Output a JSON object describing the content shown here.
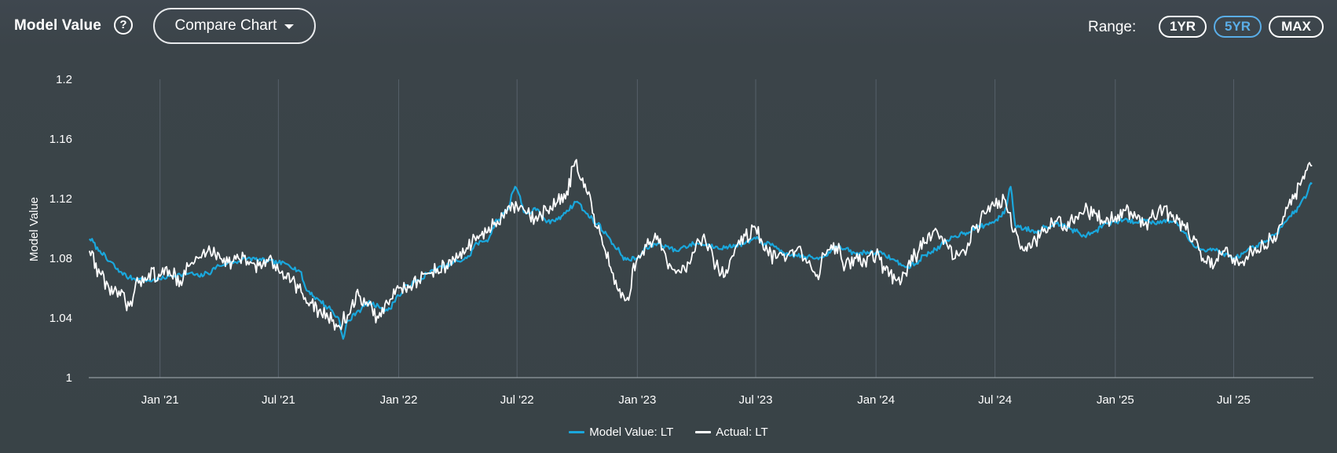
{
  "header": {
    "title": "Model Value",
    "help_glyph": "?",
    "compare_label": "Compare Chart",
    "range_label": "Range:",
    "ranges": [
      {
        "label": "1YR",
        "active": false
      },
      {
        "label": "5YR",
        "active": true
      },
      {
        "label": "MAX",
        "active": false
      }
    ]
  },
  "colors": {
    "model": "#1aa7dc",
    "actual": "#ffffff",
    "grid": "#56606a",
    "axis": "#a8b0b6"
  },
  "chart_data": {
    "type": "line",
    "ylabel": "Model Value",
    "xlabel": "",
    "ylim": [
      1,
      1.2
    ],
    "yticks": [
      "1",
      "1.04",
      "1.08",
      "1.12",
      "1.16",
      "1.2"
    ],
    "x_range": [
      "2020-09-14",
      "2025-10-31"
    ],
    "x_ticks": [
      {
        "date": "2021-01-01",
        "label": "Jan '21"
      },
      {
        "date": "2021-07-01",
        "label": "Jul '21"
      },
      {
        "date": "2022-01-01",
        "label": "Jan '22"
      },
      {
        "date": "2022-07-01",
        "label": "Jul '22"
      },
      {
        "date": "2023-01-01",
        "label": "Jan '23"
      },
      {
        "date": "2023-07-01",
        "label": "Jul '23"
      },
      {
        "date": "2024-01-01",
        "label": "Jan '24"
      },
      {
        "date": "2024-07-01",
        "label": "Jul '24"
      },
      {
        "date": "2025-01-01",
        "label": "Jan '25"
      },
      {
        "date": "2025-07-01",
        "label": "Jul '25"
      }
    ],
    "grid": "vertical",
    "legend_position": "bottom-center",
    "series": [
      {
        "name": "Model Value: LT",
        "x": [
          "2020-09-15",
          "2020-10-01",
          "2020-10-15",
          "2020-11-01",
          "2020-11-15",
          "2020-12-01",
          "2020-12-15",
          "2021-01-01",
          "2021-01-15",
          "2021-02-01",
          "2021-02-15",
          "2021-03-01",
          "2021-03-15",
          "2021-04-01",
          "2021-04-15",
          "2021-05-01",
          "2021-05-15",
          "2021-06-01",
          "2021-06-15",
          "2021-07-01",
          "2021-07-15",
          "2021-08-01",
          "2021-08-15",
          "2021-09-01",
          "2021-09-15",
          "2021-10-01",
          "2021-10-08",
          "2021-10-15",
          "2021-11-01",
          "2021-11-15",
          "2021-12-01",
          "2021-12-15",
          "2022-01-01",
          "2022-01-15",
          "2022-02-01",
          "2022-02-15",
          "2022-03-01",
          "2022-03-15",
          "2022-04-01",
          "2022-04-15",
          "2022-05-01",
          "2022-05-15",
          "2022-06-01",
          "2022-06-15",
          "2022-06-28",
          "2022-07-15",
          "2022-08-01",
          "2022-08-15",
          "2022-09-01",
          "2022-09-15",
          "2022-10-01",
          "2022-10-15",
          "2022-11-01",
          "2022-11-15",
          "2022-12-01",
          "2022-12-15",
          "2023-01-01",
          "2023-01-15",
          "2023-02-01",
          "2023-02-15",
          "2023-03-01",
          "2023-03-15",
          "2023-04-01",
          "2023-04-15",
          "2023-05-01",
          "2023-05-15",
          "2023-06-01",
          "2023-06-15",
          "2023-07-01",
          "2023-07-15",
          "2023-08-01",
          "2023-08-15",
          "2023-09-01",
          "2023-09-15",
          "2023-10-01",
          "2023-10-15",
          "2023-11-01",
          "2023-11-15",
          "2023-12-01",
          "2023-12-15",
          "2024-01-01",
          "2024-01-15",
          "2024-02-01",
          "2024-02-15",
          "2024-03-01",
          "2024-03-15",
          "2024-04-01",
          "2024-04-15",
          "2024-05-01",
          "2024-05-15",
          "2024-06-01",
          "2024-06-15",
          "2024-07-01",
          "2024-07-15",
          "2024-07-25",
          "2024-08-01",
          "2024-08-15",
          "2024-09-01",
          "2024-09-15",
          "2024-10-01",
          "2024-10-15",
          "2024-11-01",
          "2024-11-15",
          "2024-12-01",
          "2024-12-15",
          "2025-01-01",
          "2025-01-15",
          "2025-02-01",
          "2025-02-15",
          "2025-03-01",
          "2025-03-15",
          "2025-04-01",
          "2025-04-15",
          "2025-05-01",
          "2025-05-15",
          "2025-06-01",
          "2025-06-15",
          "2025-07-01",
          "2025-07-15",
          "2025-08-01",
          "2025-08-15",
          "2025-09-01",
          "2025-09-15",
          "2025-10-01",
          "2025-10-15",
          "2025-10-29"
        ],
        "values": [
          1.093,
          1.085,
          1.078,
          1.071,
          1.067,
          1.066,
          1.065,
          1.066,
          1.068,
          1.069,
          1.07,
          1.068,
          1.07,
          1.075,
          1.077,
          1.078,
          1.08,
          1.079,
          1.078,
          1.077,
          1.076,
          1.072,
          1.058,
          1.052,
          1.047,
          1.04,
          1.026,
          1.038,
          1.045,
          1.05,
          1.048,
          1.045,
          1.055,
          1.062,
          1.065,
          1.07,
          1.073,
          1.075,
          1.078,
          1.08,
          1.09,
          1.092,
          1.105,
          1.112,
          1.128,
          1.11,
          1.113,
          1.104,
          1.106,
          1.112,
          1.118,
          1.11,
          1.103,
          1.096,
          1.086,
          1.079,
          1.08,
          1.087,
          1.09,
          1.088,
          1.085,
          1.088,
          1.09,
          1.089,
          1.088,
          1.087,
          1.089,
          1.09,
          1.093,
          1.09,
          1.088,
          1.082,
          1.082,
          1.081,
          1.08,
          1.082,
          1.088,
          1.086,
          1.083,
          1.084,
          1.084,
          1.082,
          1.078,
          1.074,
          1.076,
          1.082,
          1.086,
          1.09,
          1.095,
          1.097,
          1.1,
          1.102,
          1.105,
          1.11,
          1.128,
          1.102,
          1.1,
          1.098,
          1.101,
          1.103,
          1.103,
          1.098,
          1.095,
          1.098,
          1.103,
          1.104,
          1.106,
          1.104,
          1.106,
          1.104,
          1.105,
          1.105,
          1.098,
          1.088,
          1.086,
          1.086,
          1.083,
          1.08,
          1.083,
          1.087,
          1.09,
          1.095,
          1.103,
          1.11,
          1.12,
          1.13
        ]
      },
      {
        "name": "Actual: LT",
        "x": [
          "2020-09-15",
          "2020-10-01",
          "2020-10-15",
          "2020-11-01",
          "2020-11-15",
          "2020-12-01",
          "2020-12-15",
          "2021-01-01",
          "2021-01-15",
          "2021-02-01",
          "2021-02-15",
          "2021-03-01",
          "2021-03-15",
          "2021-04-01",
          "2021-04-15",
          "2021-05-01",
          "2021-05-15",
          "2021-06-01",
          "2021-06-15",
          "2021-07-01",
          "2021-07-15",
          "2021-08-01",
          "2021-08-15",
          "2021-09-01",
          "2021-09-15",
          "2021-10-01",
          "2021-10-15",
          "2021-11-01",
          "2021-11-15",
          "2021-12-01",
          "2021-12-15",
          "2022-01-01",
          "2022-01-15",
          "2022-02-01",
          "2022-02-15",
          "2022-03-01",
          "2022-03-15",
          "2022-04-01",
          "2022-04-15",
          "2022-05-01",
          "2022-05-15",
          "2022-06-01",
          "2022-06-15",
          "2022-07-01",
          "2022-07-15",
          "2022-08-01",
          "2022-08-15",
          "2022-09-01",
          "2022-09-15",
          "2022-09-28",
          "2022-10-15",
          "2022-11-01",
          "2022-11-15",
          "2022-12-01",
          "2022-12-15",
          "2023-01-01",
          "2023-01-15",
          "2023-02-01",
          "2023-02-15",
          "2023-03-01",
          "2023-03-15",
          "2023-04-01",
          "2023-04-15",
          "2023-05-01",
          "2023-05-15",
          "2023-06-01",
          "2023-06-15",
          "2023-07-01",
          "2023-07-15",
          "2023-08-01",
          "2023-08-15",
          "2023-09-01",
          "2023-09-15",
          "2023-10-01",
          "2023-10-15",
          "2023-11-01",
          "2023-11-15",
          "2023-12-01",
          "2023-12-15",
          "2024-01-01",
          "2024-01-15",
          "2024-02-01",
          "2024-02-15",
          "2024-03-01",
          "2024-03-15",
          "2024-04-01",
          "2024-04-15",
          "2024-05-01",
          "2024-05-15",
          "2024-06-01",
          "2024-06-15",
          "2024-07-01",
          "2024-07-15",
          "2024-08-01",
          "2024-08-15",
          "2024-09-01",
          "2024-09-15",
          "2024-10-01",
          "2024-10-15",
          "2024-11-01",
          "2024-11-15",
          "2024-12-01",
          "2024-12-15",
          "2025-01-01",
          "2025-01-15",
          "2025-02-01",
          "2025-02-15",
          "2025-03-01",
          "2025-03-15",
          "2025-04-01",
          "2025-04-15",
          "2025-05-01",
          "2025-05-15",
          "2025-06-01",
          "2025-06-15",
          "2025-07-01",
          "2025-07-15",
          "2025-08-01",
          "2025-08-15",
          "2025-09-01",
          "2025-09-15",
          "2025-10-01",
          "2025-10-15",
          "2025-10-29"
        ],
        "values": [
          1.085,
          1.07,
          1.06,
          1.055,
          1.048,
          1.065,
          1.07,
          1.068,
          1.072,
          1.065,
          1.075,
          1.08,
          1.085,
          1.083,
          1.077,
          1.08,
          1.078,
          1.075,
          1.078,
          1.072,
          1.07,
          1.06,
          1.05,
          1.045,
          1.04,
          1.035,
          1.042,
          1.055,
          1.048,
          1.04,
          1.05,
          1.06,
          1.062,
          1.065,
          1.07,
          1.073,
          1.075,
          1.08,
          1.087,
          1.095,
          1.097,
          1.105,
          1.11,
          1.115,
          1.11,
          1.105,
          1.112,
          1.118,
          1.125,
          1.145,
          1.125,
          1.1,
          1.08,
          1.06,
          1.052,
          1.08,
          1.088,
          1.095,
          1.078,
          1.07,
          1.072,
          1.09,
          1.092,
          1.075,
          1.068,
          1.088,
          1.095,
          1.1,
          1.085,
          1.08,
          1.078,
          1.085,
          1.08,
          1.068,
          1.082,
          1.088,
          1.075,
          1.08,
          1.078,
          1.082,
          1.072,
          1.065,
          1.07,
          1.082,
          1.09,
          1.1,
          1.093,
          1.08,
          1.085,
          1.1,
          1.11,
          1.115,
          1.12,
          1.1,
          1.085,
          1.092,
          1.1,
          1.105,
          1.102,
          1.108,
          1.112,
          1.11,
          1.105,
          1.108,
          1.112,
          1.108,
          1.103,
          1.108,
          1.112,
          1.105,
          1.102,
          1.095,
          1.08,
          1.075,
          1.085,
          1.08,
          1.078,
          1.085,
          1.09,
          1.095,
          1.108,
          1.12,
          1.135,
          1.142
        ]
      }
    ]
  }
}
